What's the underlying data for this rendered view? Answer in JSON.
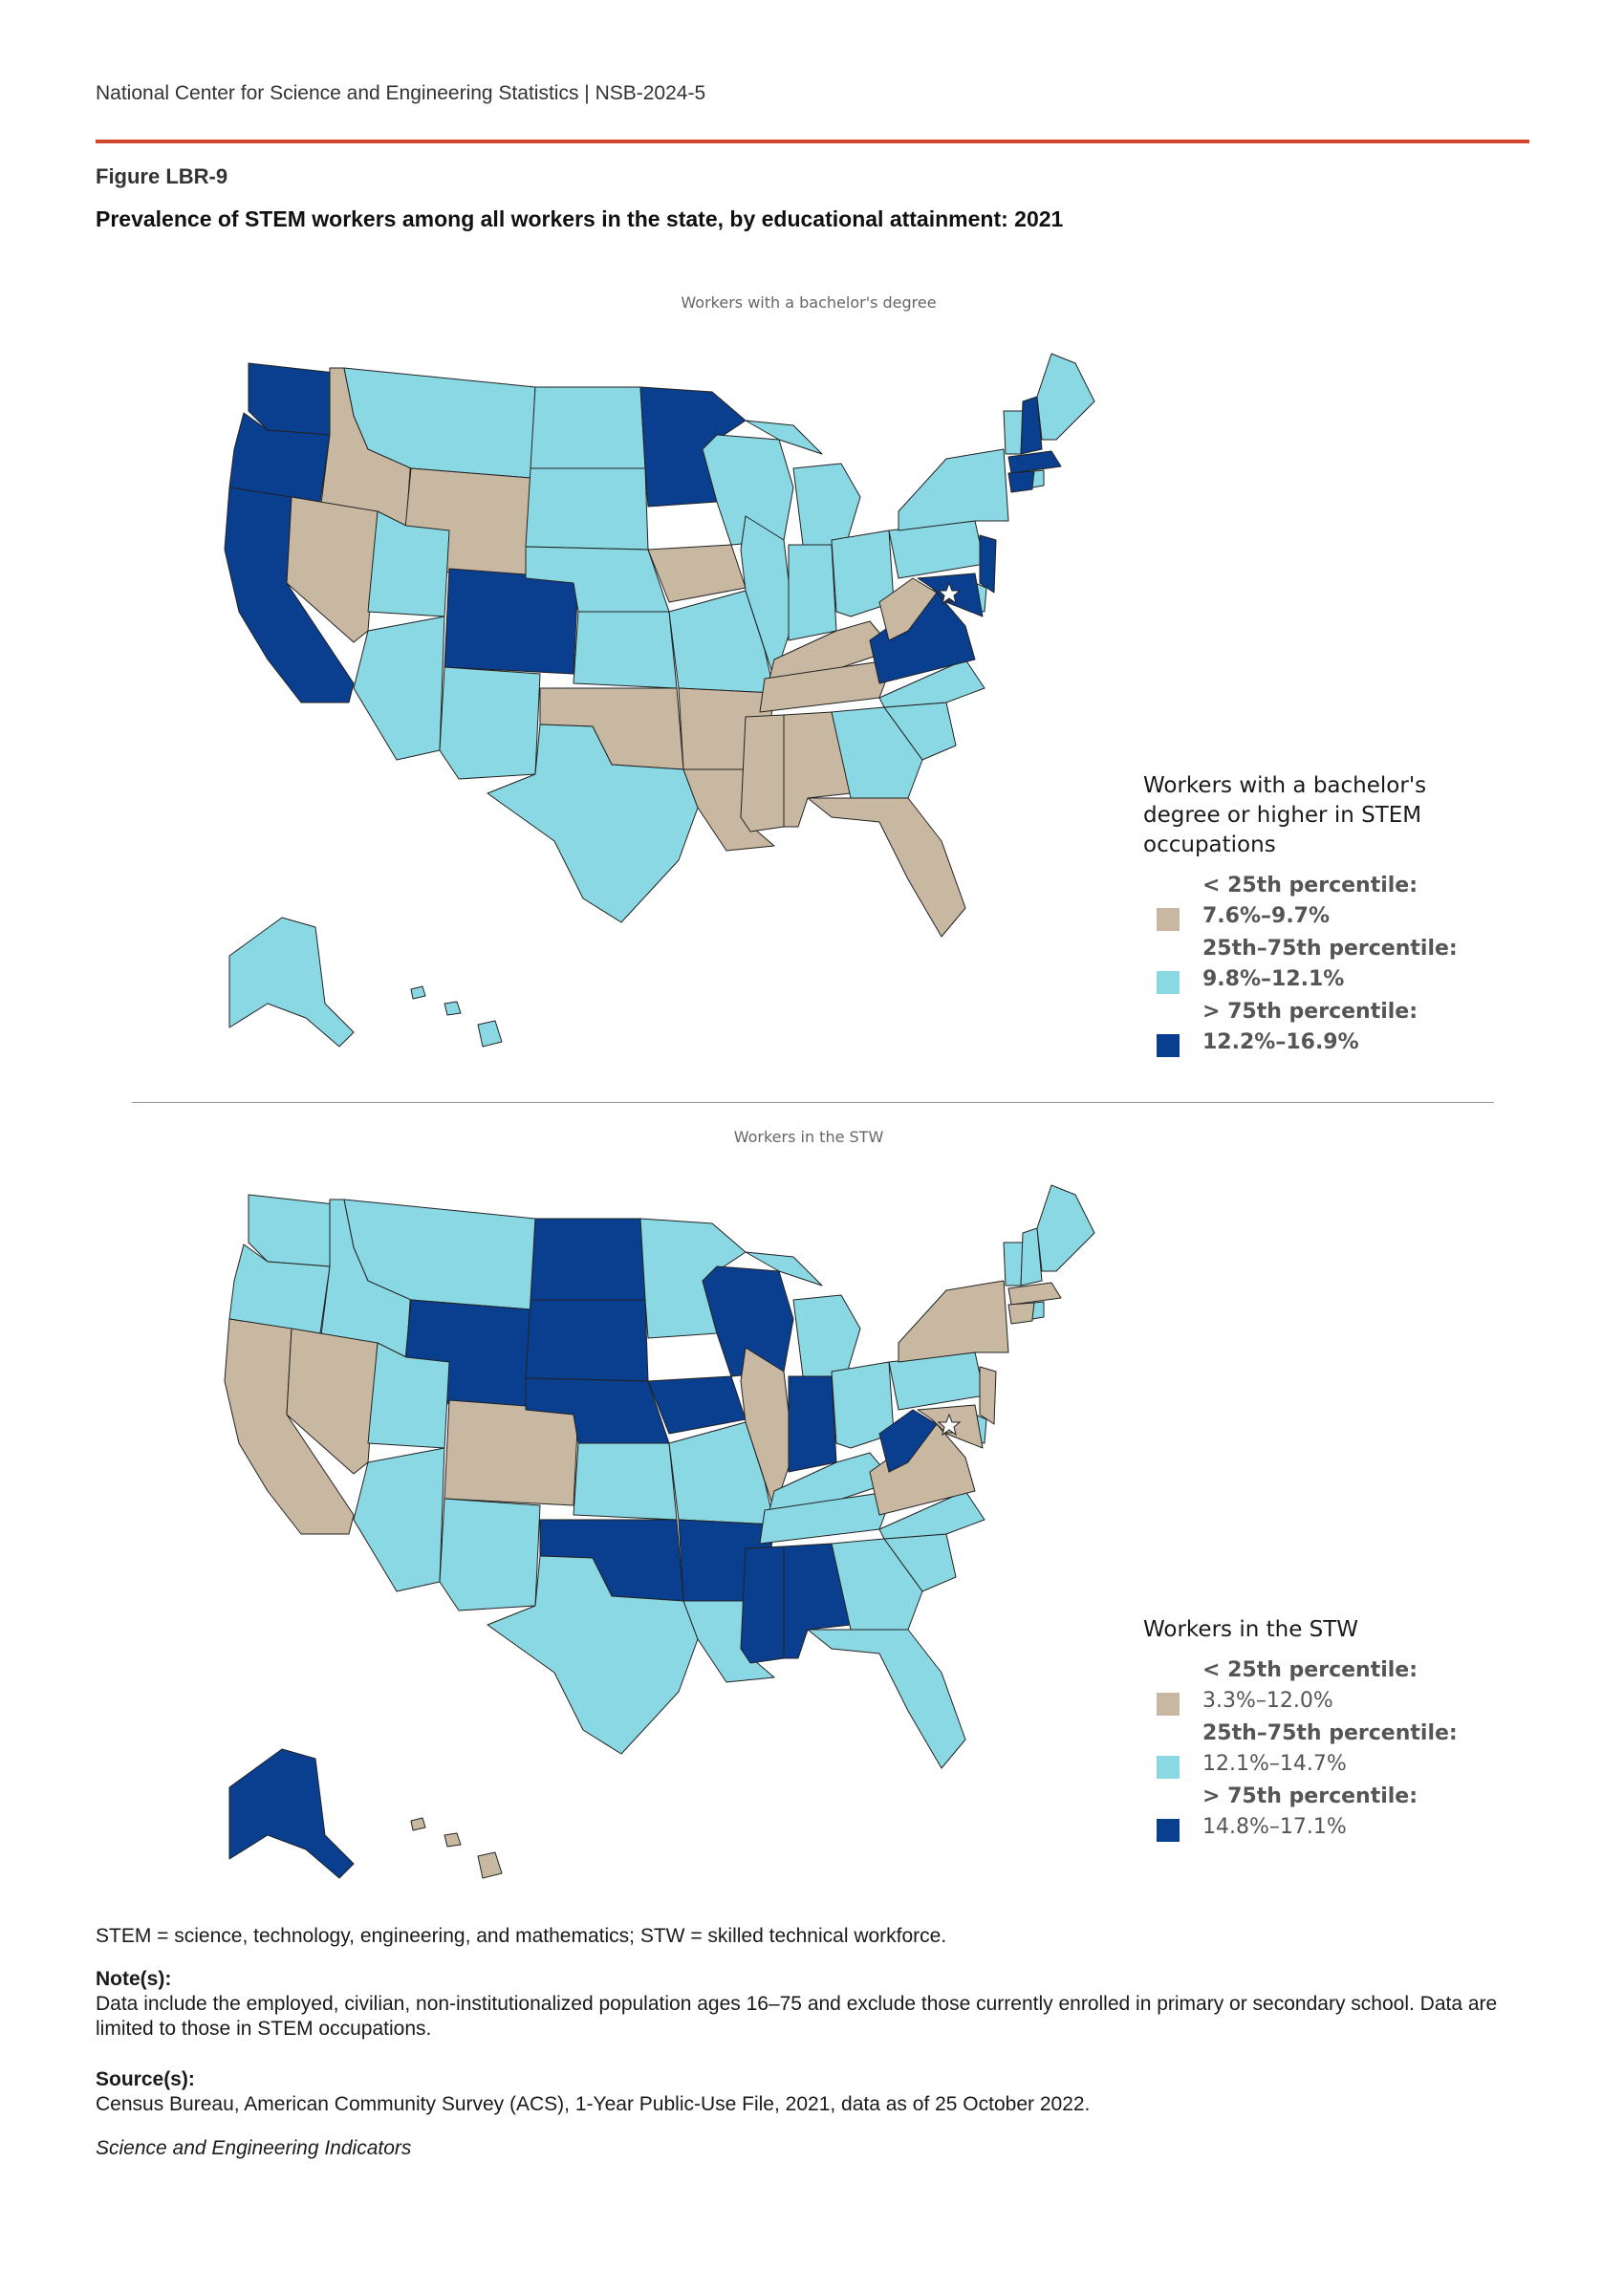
{
  "header": {
    "org": "National Center for Science and Engineering Statistics  |  NSB-2024-5",
    "figure_label": "Figure LBR-9",
    "figure_title": "Prevalence of STEM workers among all workers in the state, by educational attainment: 2021"
  },
  "colors": {
    "low": "#c8b8a2",
    "mid": "#8ad8e4",
    "high": "#0a3e8f",
    "rule": "#d2472c"
  },
  "maps": [
    {
      "id": "bachelors",
      "panel_title": "Workers with a bachelor's degree",
      "legend_title": "Workers with a bachelor's degree or higher in STEM occupations",
      "legend": [
        {
          "label": "< 25th percentile:",
          "range": "7.6%–9.7%",
          "cls": "low"
        },
        {
          "label": "25th–75th percentile:",
          "range": "9.8%–12.1%",
          "cls": "mid"
        },
        {
          "label": "> 75th percentile:",
          "range": "12.2%–16.9%",
          "cls": "high"
        }
      ],
      "states": {
        "WA": "high",
        "OR": "high",
        "CA": "high",
        "ID": "low",
        "NV": "low",
        "MT": "mid",
        "WY": "low",
        "UT": "mid",
        "AZ": "mid",
        "CO": "high",
        "NM": "mid",
        "ND": "mid",
        "SD": "mid",
        "NE": "mid",
        "KS": "mid",
        "OK": "low",
        "TX": "mid",
        "MN": "high",
        "IA": "low",
        "MO": "mid",
        "AR": "low",
        "LA": "low",
        "WI": "mid",
        "IL": "mid",
        "MI": "mid",
        "IN": "mid",
        "OH": "mid",
        "KY": "low",
        "TN": "low",
        "MS": "low",
        "AL": "low",
        "GA": "mid",
        "FL": "low",
        "SC": "mid",
        "NC": "mid",
        "VA": "high",
        "WV": "low",
        "PA": "mid",
        "NY": "mid",
        "VT": "mid",
        "NH": "high",
        "ME": "mid",
        "MA": "high",
        "CT": "high",
        "RI": "mid",
        "NJ": "high",
        "DE": "mid",
        "MD": "high",
        "DC": "high",
        "AK": "mid",
        "HI": "mid"
      }
    },
    {
      "id": "stw",
      "panel_title": "Workers in the STW",
      "legend_title": "Workers in the STW",
      "legend": [
        {
          "label": "< 25th percentile:",
          "range": "3.3%–12.0%",
          "cls": "low"
        },
        {
          "label": "25th–75th percentile:",
          "range": "12.1%–14.7%",
          "cls": "mid"
        },
        {
          "label": "> 75th percentile:",
          "range": "14.8%–17.1%",
          "cls": "high"
        }
      ],
      "states": {
        "WA": "mid",
        "OR": "mid",
        "CA": "low",
        "ID": "mid",
        "NV": "low",
        "MT": "mid",
        "WY": "high",
        "UT": "mid",
        "AZ": "mid",
        "CO": "low",
        "NM": "mid",
        "ND": "high",
        "SD": "high",
        "NE": "high",
        "KS": "mid",
        "OK": "high",
        "TX": "mid",
        "MN": "mid",
        "IA": "high",
        "MO": "mid",
        "AR": "high",
        "LA": "mid",
        "WI": "high",
        "IL": "low",
        "MI": "mid",
        "IN": "high",
        "OH": "mid",
        "KY": "mid",
        "TN": "mid",
        "MS": "high",
        "AL": "high",
        "GA": "mid",
        "FL": "mid",
        "SC": "mid",
        "NC": "mid",
        "VA": "low",
        "WV": "high",
        "PA": "mid",
        "NY": "low",
        "VT": "mid",
        "NH": "mid",
        "ME": "mid",
        "MA": "low",
        "CT": "low",
        "RI": "mid",
        "NJ": "low",
        "DE": "mid",
        "MD": "low",
        "DC": "low",
        "AK": "high",
        "HI": "low"
      }
    }
  ],
  "notes": {
    "abbr": "STEM = science, technology, engineering, and mathematics; STW = skilled technical workforce.",
    "note_head": "Note(s):",
    "note_text": "Data include the employed, civilian, non-institutionalized population ages 16–75 and exclude those currently enrolled in primary or secondary school. Data are limited to those in STEM occupations.",
    "source_head": "Source(s):",
    "source_text": "Census Bureau, American Community Survey (ACS), 1-Year Public-Use File, 2021, data as of 25 October 2022.",
    "footer": "Science and Engineering Indicators"
  }
}
